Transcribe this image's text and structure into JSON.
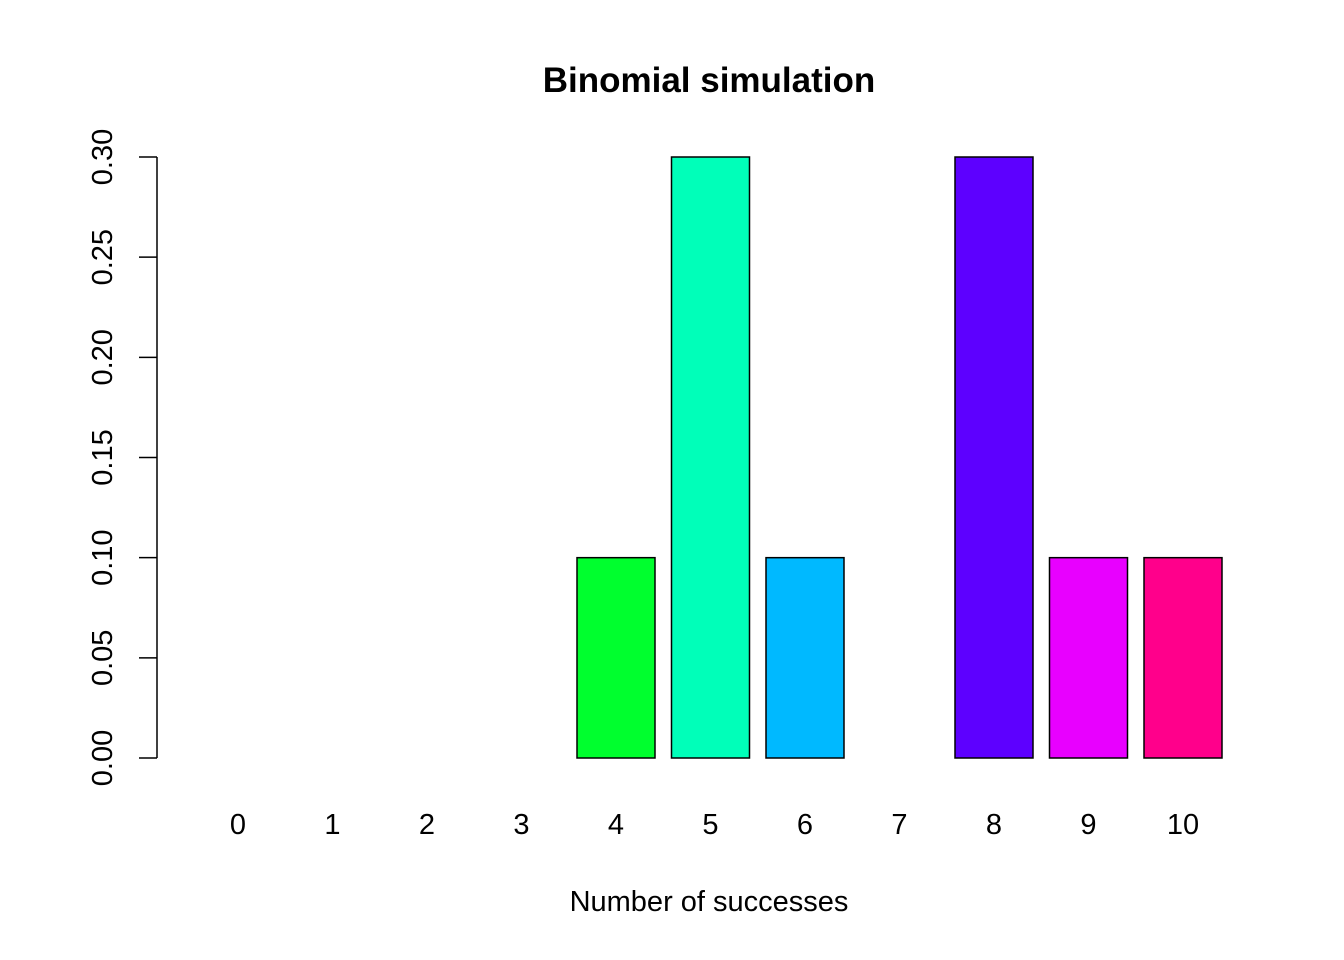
{
  "chart_data": {
    "type": "bar",
    "title": "Binomial simulation",
    "xlabel": "Number of successes",
    "ylabel": "",
    "categories": [
      "0",
      "1",
      "2",
      "3",
      "4",
      "5",
      "6",
      "7",
      "8",
      "9",
      "10"
    ],
    "values": [
      0,
      0,
      0,
      0,
      0.1,
      0.3,
      0.1,
      0,
      0.3,
      0.1,
      0.1
    ],
    "colors": [
      "#FF0000",
      "#FF8B00",
      "#E8FF00",
      "#5DFF00",
      "#00FF2E",
      "#00FFB9",
      "#00B9FF",
      "#002EFF",
      "#5D00FF",
      "#E800FF",
      "#FF008B"
    ],
    "ylim": [
      0,
      0.3
    ],
    "yticks": [
      "0.00",
      "0.05",
      "0.10",
      "0.15",
      "0.20",
      "0.25",
      "0.30"
    ],
    "grid": false,
    "legend": "none"
  }
}
